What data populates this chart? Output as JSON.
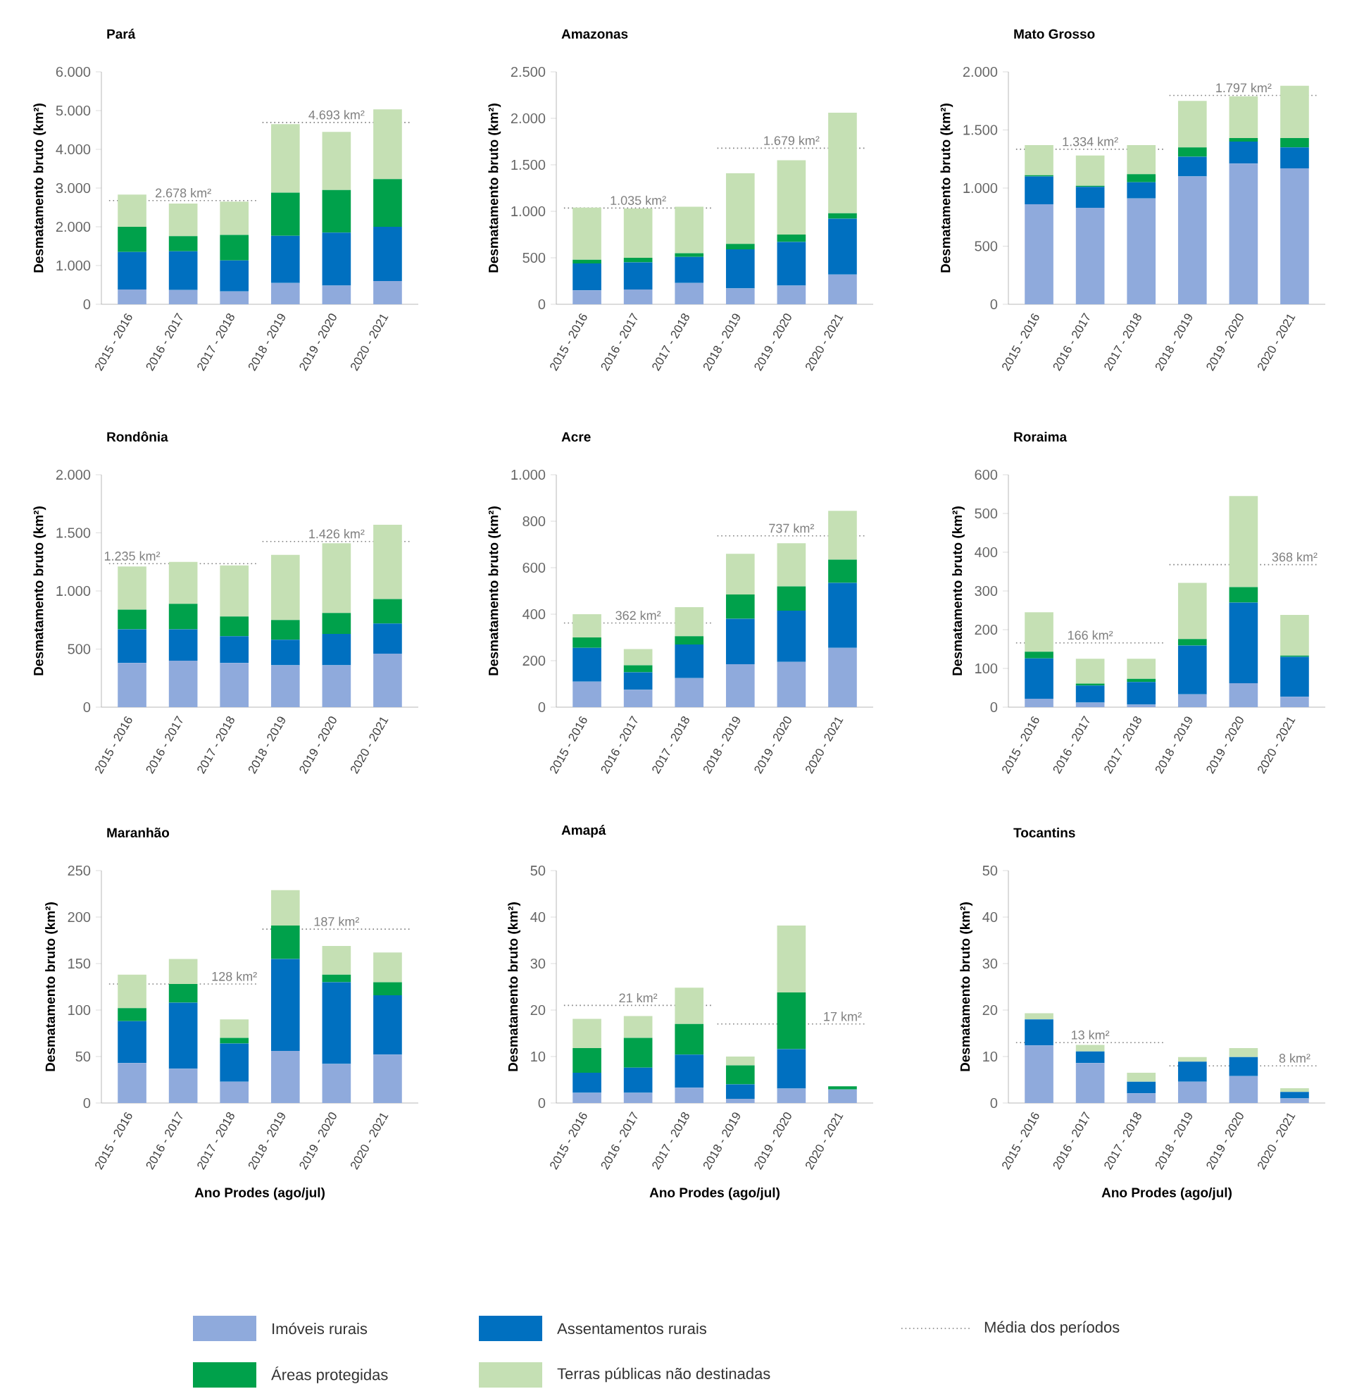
{
  "chart_data": [
    {
      "type": "bar",
      "stacked": true,
      "title": "Pará",
      "ylabel": "Desmatamento bruto (km²)",
      "categories": [
        "2015 - 2016",
        "2016 - 2017",
        "2017 - 2018",
        "2018 - 2019",
        "2019 - 2020",
        "2020 - 2021"
      ],
      "ylim": [
        0,
        6000
      ],
      "yticks": [
        0,
        {
          "value": 1000,
          "label": "1.000"
        },
        {
          "value": 2000,
          "label": "2.000"
        },
        {
          "value": 3000,
          "label": "3.000"
        },
        {
          "value": 4000,
          "label": "4.000"
        },
        {
          "value": 5000,
          "label": "5.000"
        },
        {
          "value": 6000,
          "label": "6.000"
        }
      ],
      "legend": "bottom",
      "annotations": [
        "Média dos períodos"
      ],
      "series": [
        {
          "name": "Imóveis rurais",
          "color": "#8faadc",
          "values": [
            380,
            370,
            330,
            550,
            480,
            600
          ]
        },
        {
          "name": "Assentamentos rurais",
          "color": "#0070c0",
          "values": [
            970,
            1000,
            800,
            1220,
            1370,
            1400
          ]
        },
        {
          "name": "Áreas protegidas",
          "color": "#00a14b",
          "values": [
            650,
            390,
            660,
            1110,
            1100,
            1230
          ]
        },
        {
          "name": "Terras públicas não destinadas",
          "color": "#c5e0b4",
          "values": [
            830,
            840,
            860,
            1770,
            1500,
            1800
          ]
        }
      ],
      "ref_lines": [
        {
          "axis": "y",
          "value": 2678,
          "label": "2.678 km²",
          "color": "#7f7f7f",
          "line_style": "dotted"
        },
        {
          "axis": "y",
          "value": 4693,
          "label": "4.693 km²",
          "color": "#7f7f7f",
          "line_style": "dotted"
        }
      ]
    },
    {
      "type": "bar",
      "stacked": true,
      "title": "Amazonas",
      "ylabel": "Desmatamento bruto (km²)",
      "categories": [
        "2015 - 2016",
        "2016 - 2017",
        "2017 - 2018",
        "2018 - 2019",
        "2019 - 2020",
        "2020 - 2021"
      ],
      "ylim": [
        0,
        2500
      ],
      "yticks": [
        0,
        500,
        {
          "value": 1000,
          "label": "1.000"
        },
        {
          "value": 1500,
          "label": "1.500"
        },
        {
          "value": 2000,
          "label": "2.000"
        },
        {
          "value": 2500,
          "label": "2.500"
        }
      ],
      "series": [
        {
          "color": "#8faadc",
          "values": [
            150,
            160,
            230,
            170,
            200,
            320
          ]
        },
        {
          "color": "#0070c0",
          "values": [
            290,
            290,
            280,
            420,
            470,
            600
          ]
        },
        {
          "color": "#00a14b",
          "values": [
            40,
            50,
            40,
            60,
            80,
            60
          ]
        },
        {
          "color": "#c5e0b4",
          "values": [
            560,
            530,
            500,
            760,
            800,
            1080
          ]
        }
      ],
      "ref_lines": [
        {
          "axis": "y",
          "value": 1035,
          "label": "1.035 km²",
          "color": "#7f7f7f",
          "line_style": "dotted"
        },
        {
          "axis": "y",
          "value": 1679,
          "label": "1.679 km²",
          "color": "#7f7f7f",
          "line_style": "dotted"
        }
      ]
    },
    {
      "type": "bar",
      "stacked": true,
      "title": "Mato Grosso",
      "ylabel": "Desmatamento bruto (km²)",
      "categories": [
        "2015 - 2016",
        "2016 - 2017",
        "2017 - 2018",
        "2018 - 2019",
        "2019 - 2020",
        "2020 - 2021"
      ],
      "ylim": [
        0,
        2000
      ],
      "yticks": [
        0,
        500,
        {
          "value": 1000,
          "label": "1.000"
        },
        {
          "value": 1500,
          "label": "1.500"
        },
        {
          "value": 2000,
          "label": "2.000"
        }
      ],
      "series": [
        {
          "color": "#8faadc",
          "values": [
            860,
            830,
            910,
            1100,
            1210,
            1170
          ]
        },
        {
          "color": "#0070c0",
          "values": [
            240,
            180,
            140,
            170,
            190,
            180
          ]
        },
        {
          "color": "#00a14b",
          "values": [
            10,
            10,
            70,
            80,
            30,
            80
          ]
        },
        {
          "color": "#c5e0b4",
          "values": [
            260,
            260,
            250,
            400,
            360,
            450
          ]
        }
      ],
      "ref_lines": [
        {
          "axis": "y",
          "value": 1334,
          "label": "1.334 km²",
          "color": "#7f7f7f",
          "line_style": "dotted"
        },
        {
          "axis": "y",
          "value": 1797,
          "label": "1.797 km²",
          "color": "#7f7f7f",
          "line_style": "dotted"
        }
      ]
    },
    {
      "type": "bar",
      "stacked": true,
      "title": "Rondônia",
      "ylabel": "Desmatamento bruto (km²)",
      "categories": [
        "2015 - 2016",
        "2016 - 2017",
        "2017 - 2018",
        "2018 - 2019",
        "2019 - 2020",
        "2020 - 2021"
      ],
      "ylim": [
        0,
        2000
      ],
      "yticks": [
        0,
        500,
        {
          "value": 1000,
          "label": "1.000"
        },
        {
          "value": 1500,
          "label": "1.500"
        },
        {
          "value": 2000,
          "label": "2.000"
        }
      ],
      "series": [
        {
          "color": "#8faadc",
          "values": [
            380,
            400,
            380,
            360,
            360,
            460
          ]
        },
        {
          "color": "#0070c0",
          "values": [
            290,
            270,
            230,
            220,
            270,
            260
          ]
        },
        {
          "color": "#00a14b",
          "values": [
            170,
            220,
            170,
            170,
            180,
            210
          ]
        },
        {
          "color": "#c5e0b4",
          "values": [
            370,
            360,
            440,
            560,
            600,
            640
          ]
        }
      ],
      "ref_lines": [
        {
          "axis": "y",
          "value": 1235,
          "label": "1.235 km²",
          "color": "#7f7f7f",
          "line_style": "dotted"
        },
        {
          "axis": "y",
          "value": 1426,
          "label": "1.426 km²",
          "color": "#7f7f7f",
          "line_style": "dotted"
        }
      ]
    },
    {
      "type": "bar",
      "stacked": true,
      "title": "Acre",
      "ylabel": "Desmatamento bruto (km²)",
      "categories": [
        "2015 - 2016",
        "2016 - 2017",
        "2017 - 2018",
        "2018 - 2019",
        "2019 - 2020",
        "2020 - 2021"
      ],
      "ylim": [
        0,
        1000
      ],
      "yticks": [
        0,
        200,
        400,
        600,
        800,
        {
          "value": 1000,
          "label": "1.000"
        }
      ],
      "series": [
        {
          "color": "#8faadc",
          "values": [
            110,
            75,
            125,
            185,
            195,
            255
          ]
        },
        {
          "color": "#0070c0",
          "values": [
            145,
            75,
            145,
            195,
            220,
            280
          ]
        },
        {
          "color": "#00a14b",
          "values": [
            45,
            30,
            35,
            105,
            105,
            100
          ]
        },
        {
          "color": "#c5e0b4",
          "values": [
            100,
            70,
            125,
            175,
            185,
            210
          ]
        }
      ],
      "ref_lines": [
        {
          "axis": "y",
          "value": 362,
          "label": "362 km²",
          "color": "#7f7f7f",
          "line_style": "dotted"
        },
        {
          "axis": "y",
          "value": 737,
          "label": "737 km²",
          "color": "#7f7f7f",
          "line_style": "dotted"
        }
      ]
    },
    {
      "type": "bar",
      "stacked": true,
      "title": "Roraima",
      "ylabel": "Desmatamento bruto (km²)",
      "categories": [
        "2015 - 2016",
        "2016 - 2017",
        "2017 - 2018",
        "2018 - 2019",
        "2019 - 2020",
        "2020 - 2021"
      ],
      "ylim": [
        0,
        600
      ],
      "yticks": [
        0,
        100,
        200,
        300,
        400,
        500,
        600
      ],
      "series": [
        {
          "color": "#8faadc",
          "values": [
            22,
            12,
            7,
            33,
            62,
            27
          ]
        },
        {
          "color": "#0070c0",
          "values": [
            104,
            44,
            58,
            126,
            208,
            103
          ]
        },
        {
          "color": "#00a14b",
          "values": [
            17,
            5,
            8,
            17,
            40,
            3
          ]
        },
        {
          "color": "#c5e0b4",
          "values": [
            102,
            64,
            52,
            145,
            235,
            105
          ]
        }
      ],
      "ref_lines": [
        {
          "axis": "y",
          "value": 166,
          "label": "166 km²",
          "color": "#7f7f7f",
          "line_style": "dotted"
        },
        {
          "axis": "y",
          "value": 368,
          "label": "368 km²",
          "color": "#7f7f7f",
          "line_style": "dotted"
        }
      ]
    },
    {
      "type": "bar",
      "stacked": true,
      "title": "Maranhão",
      "ylabel": "Desmatamento bruto (km²)",
      "xlabel": "Ano Prodes (ago/jul)",
      "categories": [
        "2015 - 2016",
        "2016 - 2017",
        "2017 - 2018",
        "2018 - 2019",
        "2019 - 2020",
        "2020 - 2021"
      ],
      "ylim": [
        0,
        250
      ],
      "yticks": [
        0,
        50,
        100,
        150,
        200,
        250
      ],
      "series": [
        {
          "color": "#8faadc",
          "values": [
            43,
            37,
            23,
            56,
            42,
            52
          ]
        },
        {
          "color": "#0070c0",
          "values": [
            45,
            71,
            41,
            99,
            88,
            64
          ]
        },
        {
          "color": "#00a14b",
          "values": [
            14,
            20,
            6,
            36,
            8,
            14
          ]
        },
        {
          "color": "#c5e0b4",
          "values": [
            36,
            27,
            20,
            38,
            31,
            32
          ]
        }
      ],
      "ref_lines": [
        {
          "axis": "y",
          "value": 128,
          "label": "128 km²",
          "color": "#7f7f7f",
          "line_style": "dotted"
        },
        {
          "axis": "y",
          "value": 187,
          "label": "187 km²",
          "color": "#7f7f7f",
          "line_style": "dotted"
        }
      ]
    },
    {
      "type": "bar",
      "stacked": true,
      "title": "Amapá",
      "ylabel": "Desmatamento bruto (km²)",
      "xlabel": "Ano Prodes (ago/jul)",
      "categories": [
        "2015 - 2016",
        "2016 - 2017",
        "2017 - 2018",
        "2018 - 2019",
        "2019 - 2020",
        "2020 - 2021"
      ],
      "ylim": [
        0,
        50
      ],
      "yticks": [
        0,
        10,
        20,
        30,
        40,
        50
      ],
      "series": [
        {
          "color": "#8faadc",
          "values": [
            2.2,
            2.2,
            3.3,
            0.9,
            3.1,
            2.9
          ]
        },
        {
          "color": "#0070c0",
          "values": [
            4.3,
            5.4,
            7.1,
            3.1,
            8.5,
            0
          ]
        },
        {
          "color": "#00a14b",
          "values": [
            5.3,
            6.4,
            6.6,
            4.1,
            12.2,
            0.7
          ]
        },
        {
          "color": "#c5e0b4",
          "values": [
            6.3,
            4.7,
            7.8,
            1.9,
            14.4,
            0
          ]
        }
      ],
      "ref_lines": [
        {
          "axis": "y",
          "value": 21,
          "label": "21 km²",
          "color": "#7f7f7f",
          "line_style": "dotted"
        },
        {
          "axis": "y",
          "value": 17,
          "label": "17 km²",
          "color": "#7f7f7f",
          "line_style": "dotted"
        }
      ]
    },
    {
      "type": "bar",
      "stacked": true,
      "title": "Tocantins",
      "ylabel": "Desmatamento bruto (km²)",
      "xlabel": "Ano Prodes (ago/jul)",
      "categories": [
        "2015 - 2016",
        "2016 - 2017",
        "2017 - 2018",
        "2018 - 2019",
        "2019 - 2020",
        "2020 - 2021"
      ],
      "ylim": [
        0,
        50
      ],
      "yticks": [
        0,
        10,
        20,
        30,
        40,
        50
      ],
      "series": [
        {
          "color": "#8faadc",
          "values": [
            12.4,
            8.6,
            2.1,
            4.6,
            5.8,
            1.0
          ]
        },
        {
          "color": "#0070c0",
          "values": [
            5.6,
            2.5,
            2.5,
            4.3,
            4.1,
            1.4
          ]
        },
        {
          "color": "#00a14b",
          "values": [
            0,
            0,
            0,
            0,
            0,
            0
          ]
        },
        {
          "color": "#c5e0b4",
          "values": [
            1.3,
            1.4,
            1.9,
            1.0,
            1.9,
            0.8
          ]
        }
      ],
      "ref_lines": [
        {
          "axis": "y",
          "value": 13,
          "label": "13 km²",
          "color": "#7f7f7f",
          "line_style": "dotted"
        },
        {
          "axis": "y",
          "value": 8,
          "label": "8 km²",
          "color": "#7f7f7f",
          "line_style": "dotted"
        }
      ]
    }
  ]
}
